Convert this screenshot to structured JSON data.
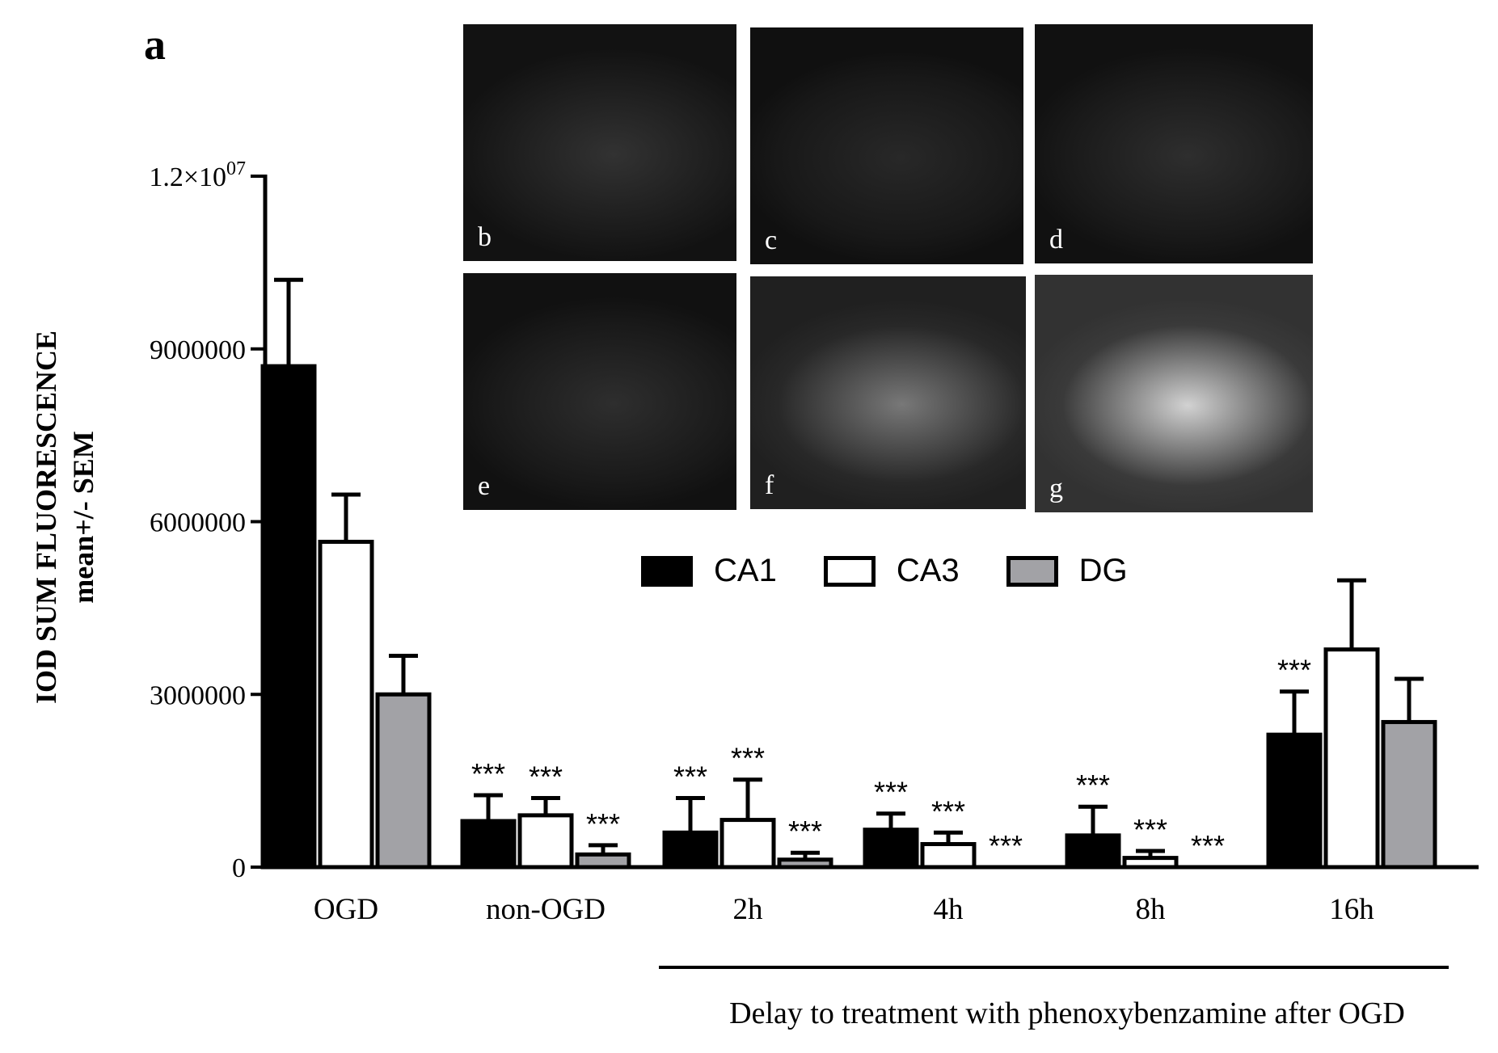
{
  "panel_letter": "a",
  "chart_data": {
    "type": "bar",
    "ylabel": [
      "IOD SUM FLUORESCENCE",
      "mean+/- SEM"
    ],
    "xlabel": "Delay to treatment with phenoxybenzamine after OGD",
    "categories": [
      "OGD",
      "non-OGD",
      "2h",
      "4h",
      "8h",
      "16h"
    ],
    "ylim": [
      0,
      12000000
    ],
    "yticks": [
      {
        "value": 0,
        "label": "0"
      },
      {
        "value": 3000000,
        "label": "3000000"
      },
      {
        "value": 6000000,
        "label": "6000000"
      },
      {
        "value": 9000000,
        "label": "9000000"
      },
      {
        "value": 12000000,
        "label_base": "1.2×10",
        "label_exp": "07"
      }
    ],
    "series": [
      {
        "name": "CA1",
        "color": "#000000",
        "values": [
          8700000,
          800000,
          600000,
          650000,
          550000,
          2300000
        ],
        "errors": [
          1500000,
          450000,
          600000,
          280000,
          500000,
          750000
        ],
        "sig": [
          "",
          "***",
          "***",
          "***",
          "***",
          "***"
        ]
      },
      {
        "name": "CA3",
        "color": "#ffffff",
        "values": [
          5650000,
          900000,
          820000,
          400000,
          160000,
          3780000
        ],
        "errors": [
          820000,
          300000,
          700000,
          200000,
          120000,
          1200000
        ],
        "sig": [
          "",
          "***",
          "***",
          "***",
          "***",
          ""
        ]
      },
      {
        "name": "DG",
        "color": "#a2a2a6",
        "values": [
          3000000,
          220000,
          130000,
          0,
          0,
          2520000
        ],
        "errors": [
          670000,
          160000,
          120000,
          0,
          0,
          750000
        ],
        "sig": [
          "",
          "***",
          "***",
          "***",
          "***",
          ""
        ]
      }
    ],
    "bracket": {
      "from_category": "2h",
      "to_category": "16h"
    }
  },
  "micrographs": [
    {
      "label": "b",
      "brightness": 0.1
    },
    {
      "label": "c",
      "brightness": 0.05
    },
    {
      "label": "d",
      "brightness": 0.08
    },
    {
      "label": "e",
      "brightness": 0.08
    },
    {
      "label": "f",
      "brightness": 0.45
    },
    {
      "label": "g",
      "brightness": 0.9
    }
  ]
}
